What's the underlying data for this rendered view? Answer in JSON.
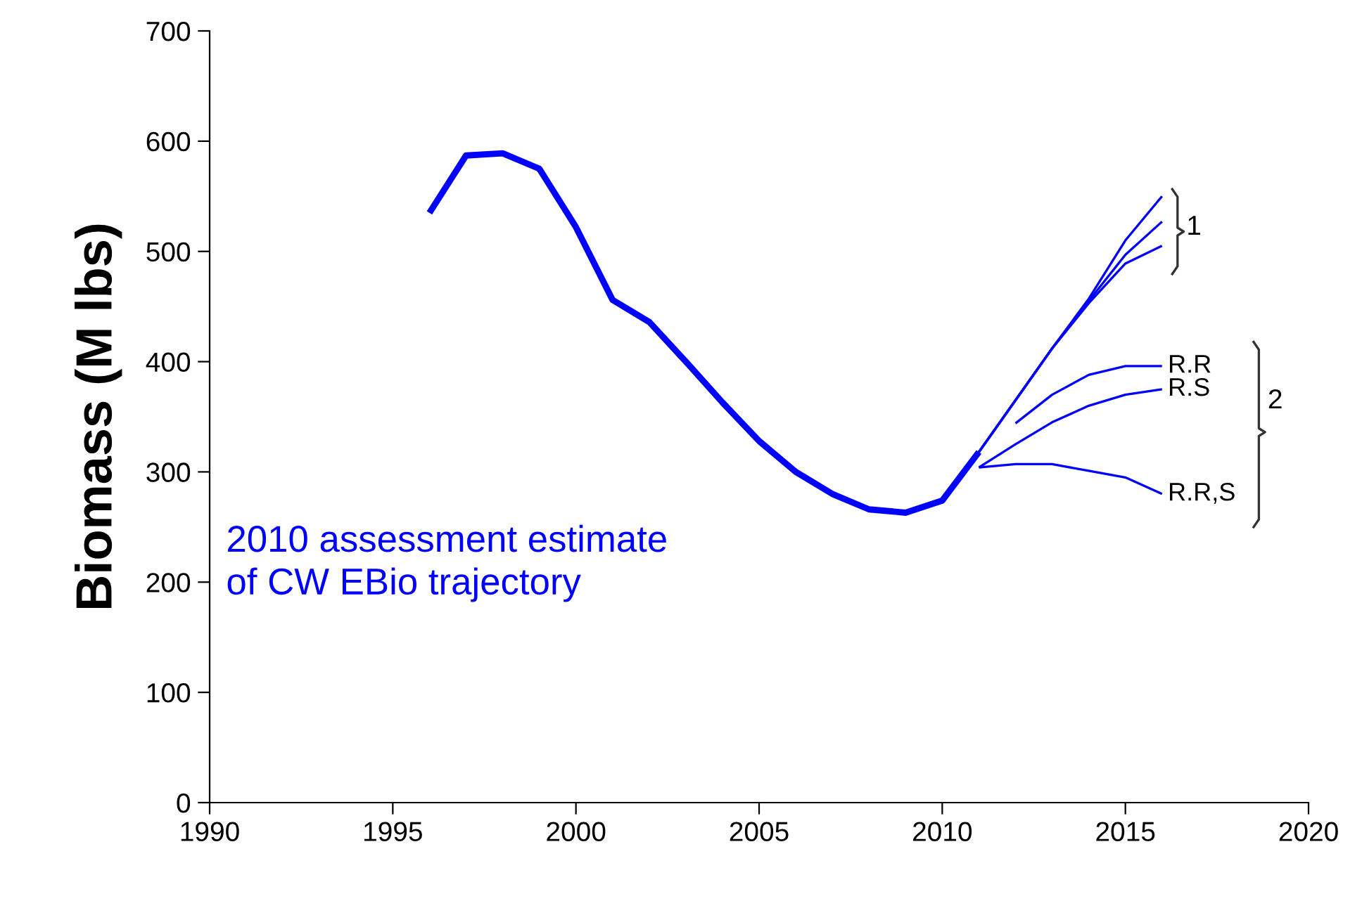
{
  "chart_data": {
    "type": "line",
    "ylabel": "Biomass (M lbs)",
    "xlim": [
      1990,
      2020
    ],
    "xticks": [
      1990,
      1995,
      2000,
      2005,
      2010,
      2015,
      2020
    ],
    "ylim": [
      0,
      700
    ],
    "yticks": [
      0,
      100,
      200,
      300,
      400,
      500,
      600,
      700
    ],
    "grid": false,
    "legend": false,
    "marker": "none",
    "line_style": "solid",
    "series": [
      {
        "color": "#0000ff",
        "x": [
          1996,
          1997,
          1998,
          1999,
          2000,
          2001,
          2002,
          2003,
          2004,
          2005,
          2006,
          2007,
          2008,
          2009,
          2010,
          2011
        ],
        "values": [
          535,
          587,
          589,
          575,
          522,
          456,
          436,
          400,
          363,
          328,
          300,
          280,
          266,
          263,
          274,
          318
        ]
      },
      {
        "color": "#0000ff",
        "x": [
          2011,
          2012,
          2013,
          2014,
          2015,
          2016
        ],
        "values": [
          318,
          365,
          412,
          457,
          510,
          550
        ]
      },
      {
        "color": "#0000ff",
        "x": [
          2011,
          2012,
          2013,
          2014,
          2015,
          2016
        ],
        "values": [
          318,
          365,
          412,
          455,
          497,
          527
        ]
      },
      {
        "color": "#0000ff",
        "x": [
          2011,
          2012,
          2013,
          2014,
          2015,
          2016
        ],
        "values": [
          318,
          365,
          412,
          453,
          489,
          505
        ]
      },
      {
        "name": "R.R",
        "color": "#0000ff",
        "x": [
          2012,
          2013,
          2014,
          2015,
          2016
        ],
        "values": [
          344,
          370,
          388,
          396,
          396
        ]
      },
      {
        "name": "R.S",
        "color": "#0000ff",
        "x": [
          2011,
          2012,
          2013,
          2014,
          2015,
          2016
        ],
        "values": [
          304,
          325,
          345,
          360,
          370,
          375
        ]
      },
      {
        "name": "R.R,S",
        "color": "#0000ff",
        "x": [
          2011,
          2012,
          2013,
          2014,
          2015,
          2016
        ],
        "values": [
          304,
          307,
          307,
          301,
          295,
          280
        ]
      }
    ],
    "annotations": [
      "1",
      "2",
      "2010 assessment estimate\nof CW EBio trajectory"
    ]
  }
}
